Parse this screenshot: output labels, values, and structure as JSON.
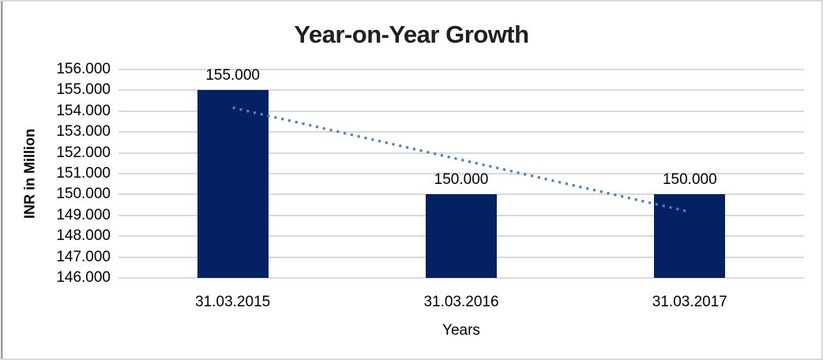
{
  "chart_data": {
    "type": "bar",
    "title": "Year-on-Year Growth",
    "xlabel": "Years",
    "ylabel": "INR in Million",
    "categories": [
      "31.03.2015",
      "31.03.2016",
      "31.03.2017"
    ],
    "values": [
      155000,
      150000,
      150000
    ],
    "value_labels": [
      "155.000",
      "150.000",
      "150.000"
    ],
    "ylim": [
      146000,
      156000
    ],
    "y_tick_values": [
      146000,
      147000,
      148000,
      149000,
      150000,
      151000,
      152000,
      153000,
      154000,
      155000,
      156000
    ],
    "y_tick_labels": [
      "146.000",
      "147.000",
      "148.000",
      "149.000",
      "150.000",
      "151.000",
      "152.000",
      "153.000",
      "154.000",
      "155.000",
      "156.000"
    ],
    "grid": true,
    "legend_position": "none",
    "bar_color": "#032163",
    "gridline_color": "#d9d9d9",
    "trendline": {
      "style": "dotted",
      "color": "#4f81bd",
      "start_value": 154167,
      "end_value": 149167
    }
  }
}
